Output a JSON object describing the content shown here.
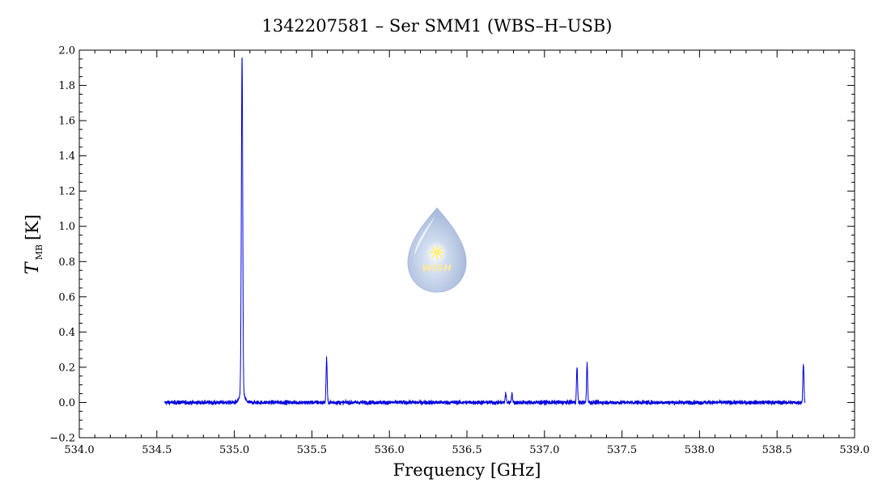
{
  "chart_data": {
    "type": "line",
    "title": "1342207581 – Ser SMM1 (WBS–H–USB)",
    "xlabel": "Frequency [GHz]",
    "ylabel": {
      "symbol": "T",
      "subscript": "MB",
      "unit": "[K]"
    },
    "xlim": [
      534.0,
      539.0
    ],
    "ylim": [
      -0.2,
      2.0
    ],
    "x_ticks": [
      "534.0",
      "534.5",
      "535.0",
      "535.5",
      "536.0",
      "536.5",
      "537.0",
      "537.5",
      "538.0",
      "538.5",
      "539.0"
    ],
    "y_ticks": [
      "−0.2",
      "0.0",
      "0.2",
      "0.4",
      "0.6",
      "0.8",
      "1.0",
      "1.2",
      "1.4",
      "1.6",
      "1.8",
      "2.0"
    ],
    "grid": false,
    "series": [
      {
        "color": "#0000dd",
        "x_range": [
          534.55,
          538.68
        ],
        "baseline": 0.0,
        "noise_rms": 0.006,
        "lines": [
          {
            "x": 535.05,
            "peak": 1.79
          },
          {
            "x": 535.045,
            "peak": 0.3
          },
          {
            "x": 535.595,
            "peak": 0.25
          },
          {
            "x": 536.75,
            "peak": 0.05
          },
          {
            "x": 536.79,
            "peak": 0.05
          },
          {
            "x": 537.21,
            "peak": 0.2
          },
          {
            "x": 537.275,
            "peak": 0.22
          },
          {
            "x": 538.67,
            "peak": 0.22
          }
        ]
      }
    ],
    "logo": {
      "text": "WISH"
    }
  }
}
